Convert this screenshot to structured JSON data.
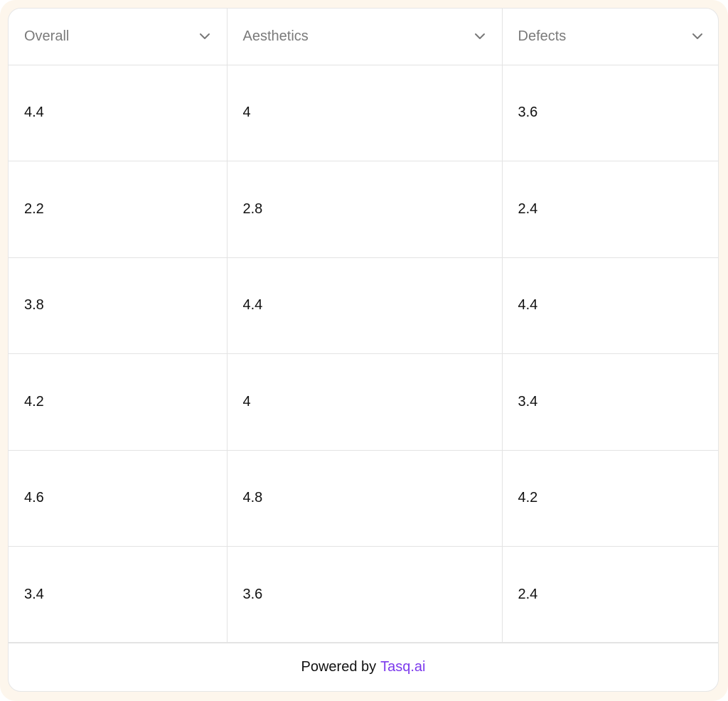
{
  "table": {
    "columns": [
      {
        "label": "Overall",
        "icon": "chevron-down-icon"
      },
      {
        "label": "Aesthetics",
        "icon": "chevron-down-icon"
      },
      {
        "label": "Defects",
        "icon": "chevron-down-icon"
      }
    ],
    "rows": [
      [
        "4.4",
        "4",
        "3.6"
      ],
      [
        "2.2",
        "2.8",
        "2.4"
      ],
      [
        "3.8",
        "4.4",
        "4.4"
      ],
      [
        "4.2",
        "4",
        "3.4"
      ],
      [
        "4.6",
        "4.8",
        "4.2"
      ],
      [
        "3.4",
        "3.6",
        "2.4"
      ]
    ]
  },
  "footer": {
    "prefix": "Powered by",
    "brand": "Tasq.ai",
    "brand_color": "#7c3aed"
  }
}
